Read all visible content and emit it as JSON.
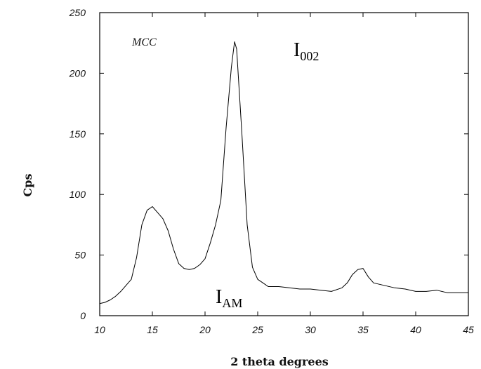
{
  "chart_data": {
    "type": "line",
    "xlabel": "2 theta degrees",
    "ylabel": "Cps",
    "xlim": [
      10,
      45
    ],
    "ylim": [
      0,
      250
    ],
    "x_ticks": [
      10,
      15,
      20,
      25,
      30,
      35,
      40,
      45
    ],
    "y_ticks": [
      0,
      50,
      100,
      150,
      200,
      250
    ],
    "grid": false,
    "series": [
      {
        "name": "MCC",
        "x": [
          10,
          10.5,
          11,
          11.5,
          12,
          12.5,
          13,
          13.5,
          14,
          14.5,
          15,
          15.5,
          16,
          16.5,
          17,
          17.5,
          18,
          18.5,
          19,
          19.5,
          20,
          20.5,
          21,
          21.5,
          22,
          22.5,
          22.8,
          23,
          23.5,
          24,
          24.5,
          25,
          25.5,
          26,
          27,
          28,
          29,
          30,
          31,
          32,
          33,
          33.5,
          34,
          34.5,
          35,
          35.5,
          36,
          37,
          38,
          39,
          40,
          41,
          42,
          43,
          44,
          45
        ],
        "y": [
          10,
          11,
          13,
          16,
          20,
          25,
          30,
          48,
          75,
          87,
          90,
          85,
          80,
          70,
          55,
          43,
          39,
          38,
          39,
          42,
          47,
          60,
          75,
          95,
          155,
          205,
          226,
          220,
          150,
          75,
          40,
          30,
          27,
          24,
          24,
          23,
          22,
          22,
          21,
          20,
          23,
          27,
          34,
          38,
          39,
          32,
          27,
          25,
          23,
          22,
          20,
          20,
          21,
          19,
          19,
          19
        ]
      }
    ],
    "annotations": [
      {
        "label": "MCC"
      },
      {
        "label_main": "I",
        "label_sub": "002"
      },
      {
        "label_main": "I",
        "label_sub": "AM"
      }
    ]
  }
}
